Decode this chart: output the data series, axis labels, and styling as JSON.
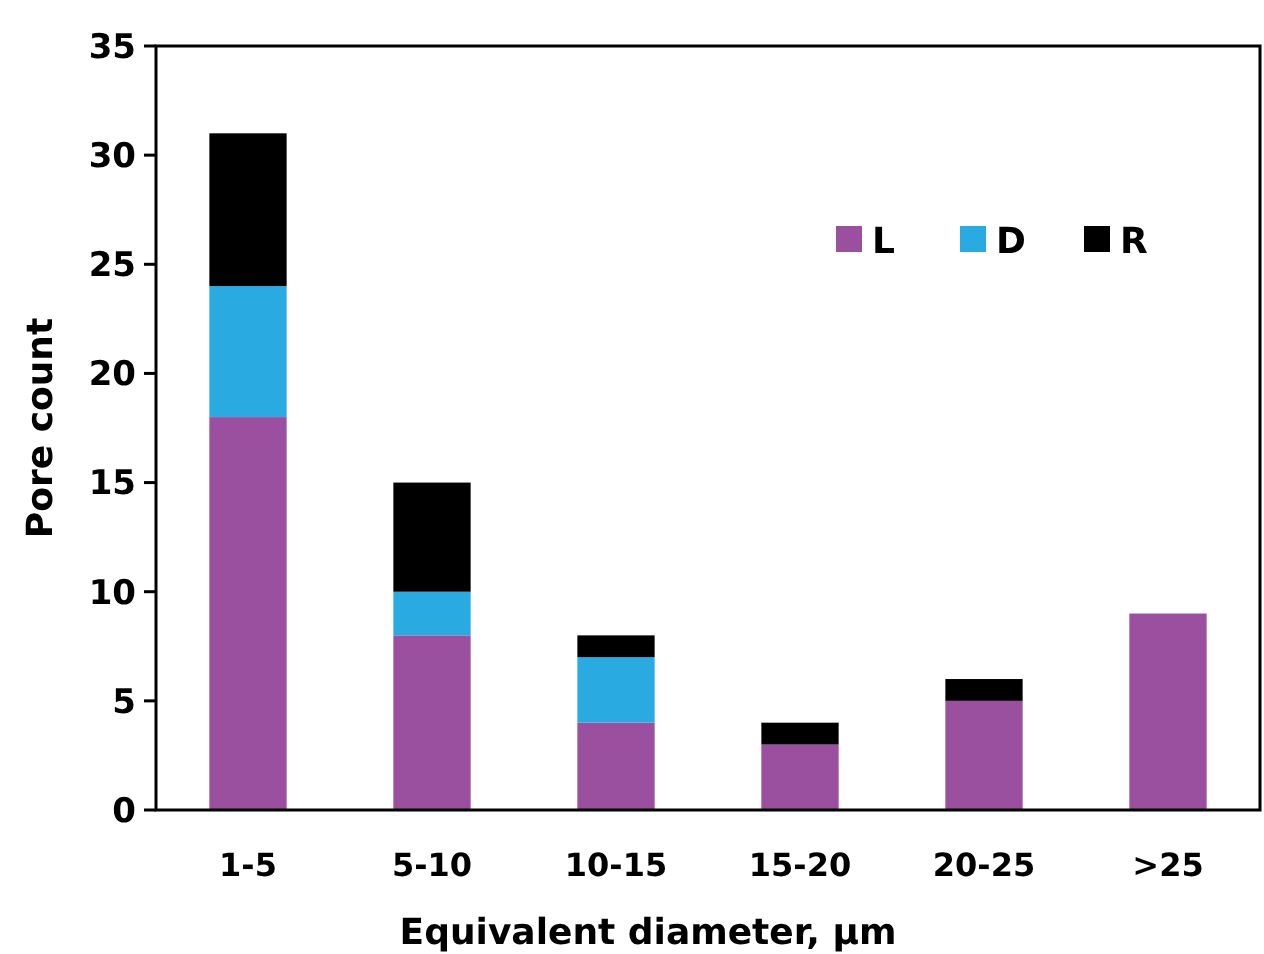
{
  "chart_data": {
    "type": "bar",
    "stacked": true,
    "xlabel": "Equivalent diameter, µm",
    "ylabel": "Pore count",
    "categories": [
      "1-5",
      "5-10",
      "10-15",
      "15-20",
      "20-25",
      ">25"
    ],
    "series": [
      {
        "name": "L",
        "color": "#9b4f9f",
        "values": [
          18,
          8,
          4,
          3,
          5,
          9
        ]
      },
      {
        "name": "D",
        "color": "#29abe2",
        "values": [
          6,
          2,
          3,
          0,
          0,
          0
        ]
      },
      {
        "name": "R",
        "color": "#000000",
        "values": [
          7,
          5,
          1,
          1,
          1,
          0
        ]
      }
    ],
    "ylim": [
      0,
      35
    ],
    "yticks": [
      0,
      5,
      10,
      15,
      20,
      25,
      30,
      35
    ],
    "grid": false,
    "legend": "top right"
  }
}
